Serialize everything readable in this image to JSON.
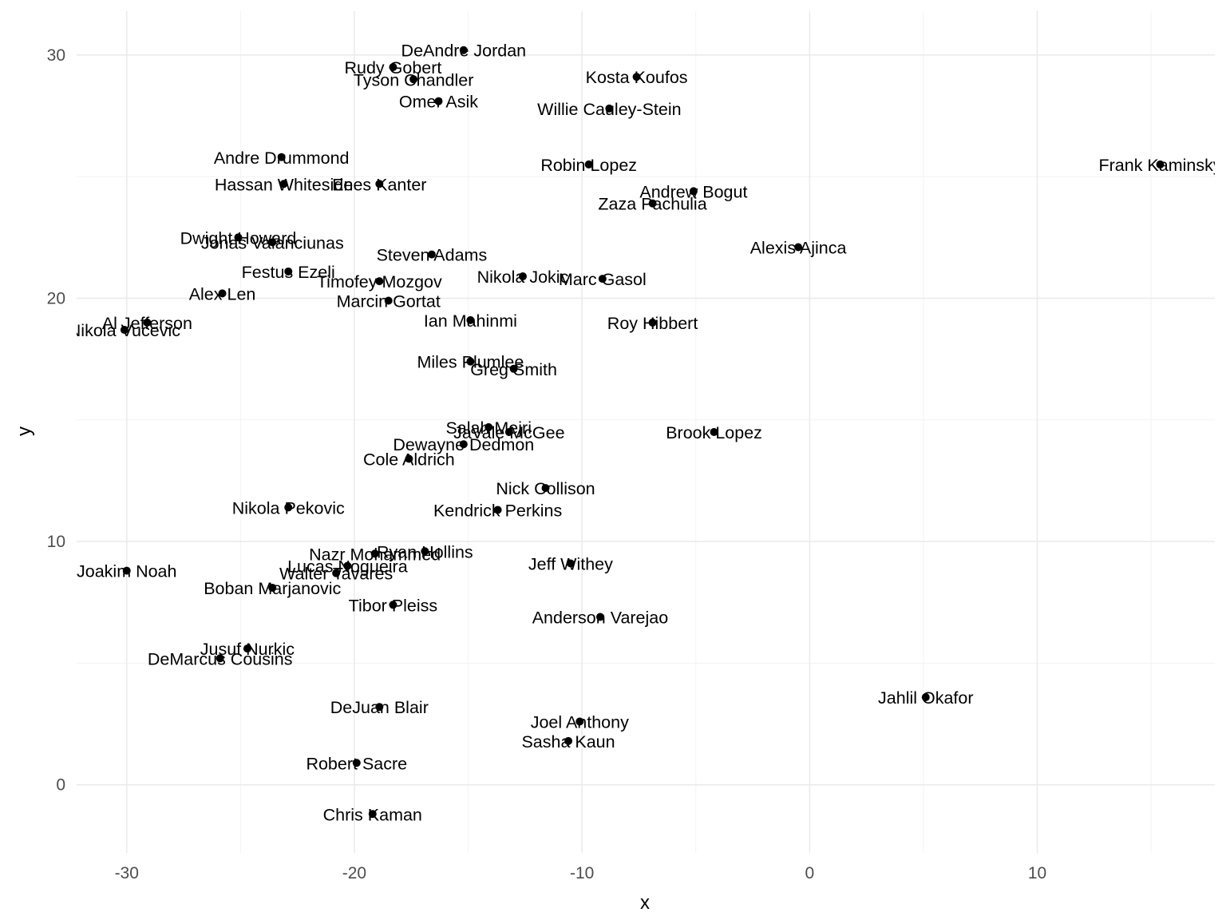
{
  "chart_data": {
    "type": "scatter",
    "xlabel": "x",
    "ylabel": "y",
    "xlim": [
      -32.2,
      17.8
    ],
    "ylim": [
      -2.8,
      31.8
    ],
    "x_ticks": [
      -30,
      -20,
      -10,
      0,
      10
    ],
    "y_ticks": [
      0,
      10,
      20,
      30
    ],
    "x_tick_labels": [
      "-30",
      "-20",
      "-10",
      "0",
      "10"
    ],
    "y_tick_labels": [
      "0",
      "10",
      "20",
      "30"
    ],
    "grid": true,
    "legend": "none",
    "points": [
      {
        "label": "DeAndre Jordan",
        "x": -15.2,
        "y": 30.2
      },
      {
        "label": "Rudy Gobert",
        "x": -18.3,
        "y": 29.5
      },
      {
        "label": "Tyson Chandler",
        "x": -17.4,
        "y": 29.0
      },
      {
        "label": "Kosta Koufos",
        "x": -7.6,
        "y": 29.1
      },
      {
        "label": "Omer Asik",
        "x": -16.3,
        "y": 28.1
      },
      {
        "label": "Willie Cauley-Stein",
        "x": -8.8,
        "y": 27.8
      },
      {
        "label": "Andre Drummond",
        "x": -23.2,
        "y": 25.8
      },
      {
        "label": "Robin Lopez",
        "x": -9.7,
        "y": 25.5
      },
      {
        "label": "Frank Kaminsky",
        "x": 15.4,
        "y": 25.5
      },
      {
        "label": "Hassan Whiteside",
        "x": -23.1,
        "y": 24.7
      },
      {
        "label": "Enes Kanter",
        "x": -18.9,
        "y": 24.7
      },
      {
        "label": "Andrew Bogut",
        "x": -5.1,
        "y": 24.4
      },
      {
        "label": "Zaza Pachulia",
        "x": -6.9,
        "y": 23.9
      },
      {
        "label": "Dwight Howard",
        "x": -25.1,
        "y": 22.5
      },
      {
        "label": "Jonas Valanciunas",
        "x": -23.6,
        "y": 22.3
      },
      {
        "label": "Alexis Ajinca",
        "x": -0.5,
        "y": 22.1
      },
      {
        "label": "Steven Adams",
        "x": -16.6,
        "y": 21.8
      },
      {
        "label": "Festus Ezeli",
        "x": -22.9,
        "y": 21.1
      },
      {
        "label": "Nikola Jokic",
        "x": -12.6,
        "y": 20.9
      },
      {
        "label": "Marc Gasol",
        "x": -9.1,
        "y": 20.8
      },
      {
        "label": "Timofey Mozgov",
        "x": -18.9,
        "y": 20.7
      },
      {
        "label": "Alex Len",
        "x": -25.8,
        "y": 20.2
      },
      {
        "label": "Marcin Gortat",
        "x": -18.5,
        "y": 19.9
      },
      {
        "label": "Al Jefferson",
        "x": -29.1,
        "y": 19.0
      },
      {
        "label": "Ian Mahinmi",
        "x": -14.9,
        "y": 19.1
      },
      {
        "label": "Roy Hibbert",
        "x": -6.9,
        "y": 19.0
      },
      {
        "label": "Nikola Vucevic",
        "x": -30.1,
        "y": 18.7
      },
      {
        "label": "Miles Plumlee",
        "x": -14.9,
        "y": 17.4
      },
      {
        "label": "Greg Smith",
        "x": -13.0,
        "y": 17.1
      },
      {
        "label": "Salah Mejri",
        "x": -14.1,
        "y": 14.7
      },
      {
        "label": "JaVale McGee",
        "x": -13.2,
        "y": 14.5
      },
      {
        "label": "Brook Lopez",
        "x": -4.2,
        "y": 14.5
      },
      {
        "label": "Dewayne Dedmon",
        "x": -15.2,
        "y": 14.0
      },
      {
        "label": "Cole Aldrich",
        "x": -17.6,
        "y": 13.4
      },
      {
        "label": "Nick Collison",
        "x": -11.6,
        "y": 12.2
      },
      {
        "label": "Nikola Pekovic",
        "x": -22.9,
        "y": 11.4
      },
      {
        "label": "Kendrick Perkins",
        "x": -13.7,
        "y": 11.3
      },
      {
        "label": "Ryan Hollins",
        "x": -16.9,
        "y": 9.6
      },
      {
        "label": "Nazr Mohammed",
        "x": -19.1,
        "y": 9.5
      },
      {
        "label": "Jeff Withey",
        "x": -10.5,
        "y": 9.1
      },
      {
        "label": "Lucas Nogueira",
        "x": -20.3,
        "y": 9.0
      },
      {
        "label": "Joakim Noah",
        "x": -30.0,
        "y": 8.8
      },
      {
        "label": "Walter Tavares",
        "x": -20.8,
        "y": 8.7
      },
      {
        "label": "Boban Marjanovic",
        "x": -23.6,
        "y": 8.1
      },
      {
        "label": "Tibor Pleiss",
        "x": -18.3,
        "y": 7.4
      },
      {
        "label": "Anderson Varejao",
        "x": -9.2,
        "y": 6.9
      },
      {
        "label": "Jusuf Nurkic",
        "x": -24.7,
        "y": 5.6
      },
      {
        "label": "DeMarcus Cousins",
        "x": -25.9,
        "y": 5.2
      },
      {
        "label": "Jahlil Okafor",
        "x": 5.1,
        "y": 3.6
      },
      {
        "label": "DeJuan Blair",
        "x": -18.9,
        "y": 3.2
      },
      {
        "label": "Joel Anthony",
        "x": -10.1,
        "y": 2.6
      },
      {
        "label": "Sasha Kaun",
        "x": -10.6,
        "y": 1.8
      },
      {
        "label": "Robert Sacre",
        "x": -19.9,
        "y": 0.9
      },
      {
        "label": "Chris Kaman",
        "x": -19.2,
        "y": -1.2
      }
    ]
  }
}
